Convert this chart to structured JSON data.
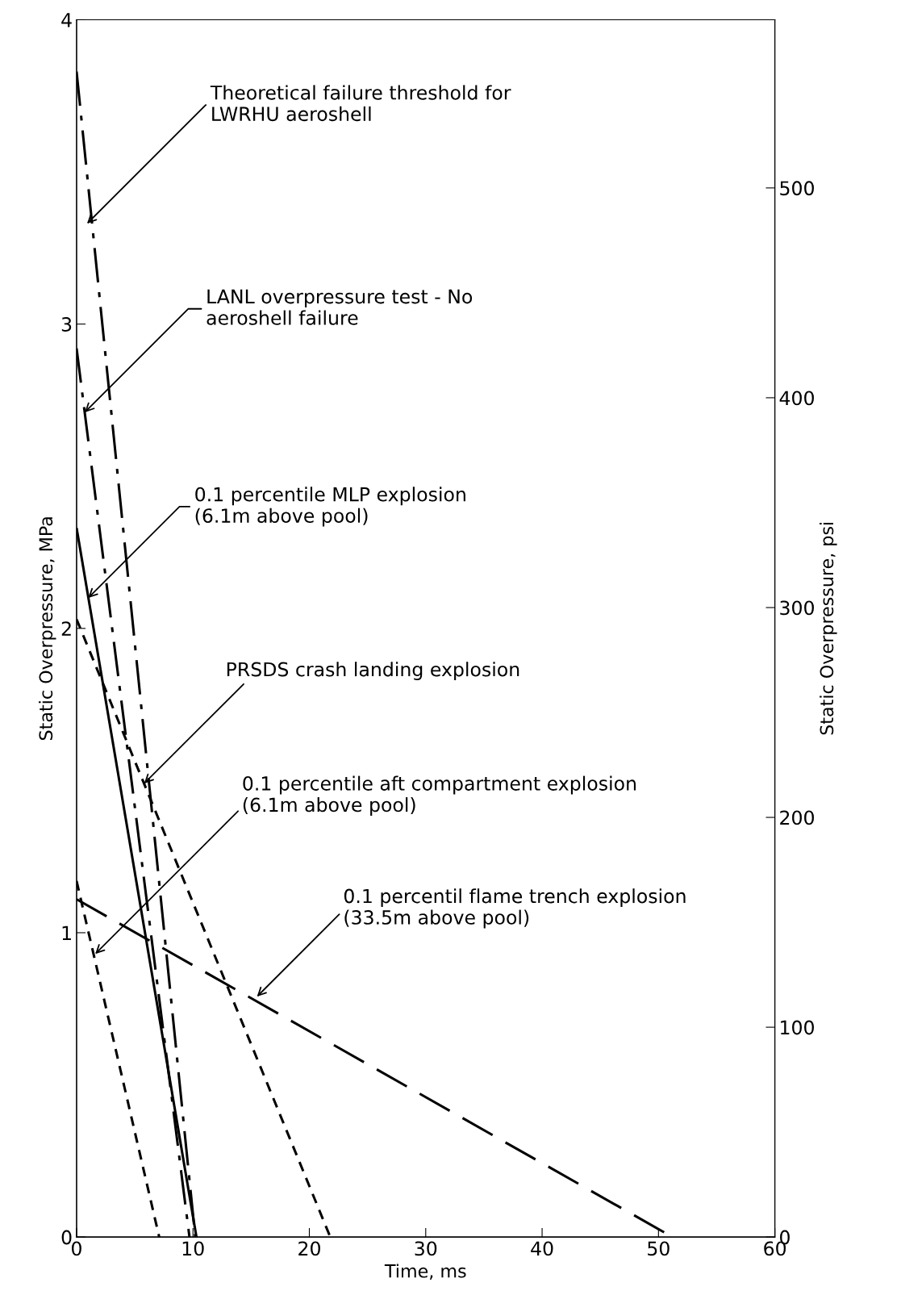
{
  "chart_data": {
    "type": "line",
    "xlabel": "Time, ms",
    "ylabel": "Static Overpressure, MPa",
    "y2label": "Static Overpressure, psi",
    "xlim": [
      0,
      60
    ],
    "xticks": [
      0,
      10,
      20,
      30,
      40,
      50,
      60
    ],
    "ylim": [
      0,
      4
    ],
    "yticks": [
      0,
      1,
      2,
      3,
      4
    ],
    "y2lim": [
      0,
      580.15
    ],
    "y2ticks": [
      0,
      100,
      200,
      300,
      400,
      500
    ],
    "grid": false,
    "legend": false,
    "marker": "none",
    "series": [
      {
        "color": "#000000",
        "x": [
          0,
          10.2
        ],
        "values": [
          3.83,
          0
        ],
        "line_style": "dashdot"
      },
      {
        "color": "#000000",
        "x": [
          0,
          9.7
        ],
        "values": [
          2.92,
          0
        ],
        "line_style": "dashdot"
      },
      {
        "color": "#000000",
        "x": [
          0,
          10.3
        ],
        "values": [
          2.33,
          0
        ],
        "line_style": "solid"
      },
      {
        "color": "#000000",
        "x": [
          0,
          21.8
        ],
        "values": [
          2.03,
          0
        ],
        "line_style": "dotted"
      },
      {
        "color": "#000000",
        "x": [
          0,
          7.1
        ],
        "values": [
          1.17,
          0
        ],
        "line_style": "dotted"
      },
      {
        "color": "#000000",
        "x": [
          0,
          51.2
        ],
        "values": [
          1.11,
          0
        ],
        "line_style": "dashed"
      }
    ],
    "annotations": [
      {
        "text": "Theoretical failure threshold for\nLWRHU aeroshell",
        "x": 0.9,
        "y": 3.33
      },
      {
        "text": "LANL overpressure test - No\naeroshell failure",
        "x": 0.7,
        "y": 2.71
      },
      {
        "text": "0.1 percentile MLP explosion\n(6.1m above pool)",
        "x": 1.0,
        "y": 2.1
      },
      {
        "text": "PRSDS crash landing explosion",
        "x": 5.8,
        "y": 1.49
      },
      {
        "text": "0.1 percentile aft compartment explosion\n(6.1m above pool)",
        "x": 1.6,
        "y": 0.93
      },
      {
        "text": "0.1 percentil flame trench explosion\n(33.5m above pool)",
        "x": 15.5,
        "y": 0.79
      }
    ]
  }
}
